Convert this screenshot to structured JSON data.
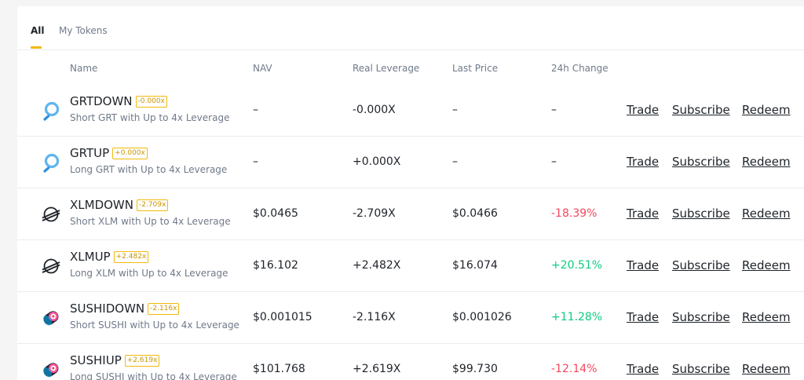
{
  "tabs": [
    {
      "label": "All",
      "active": true
    },
    {
      "label": "My Tokens",
      "active": false
    }
  ],
  "columns": {
    "name": "Name",
    "nav": "NAV",
    "leverage": "Real Leverage",
    "price": "Last Price",
    "change": "24h Change"
  },
  "actions": {
    "trade": "Trade",
    "subscribe": "Subscribe",
    "redeem": "Redeem"
  },
  "colors": {
    "accent": "#f0b90b",
    "up": "#0ecb81",
    "down": "#f6465d"
  },
  "rows": [
    {
      "symbol": "GRTDOWN",
      "badge": "-0.000x",
      "desc": "Short GRT with Up to 4x Leverage",
      "icon": "grt-icon",
      "nav": "–",
      "leverage": "-0.000X",
      "price": "–",
      "change": "–",
      "dir": "none"
    },
    {
      "symbol": "GRTUP",
      "badge": "+0.000x",
      "desc": "Long GRT with Up to 4x Leverage",
      "icon": "grt-icon",
      "nav": "–",
      "leverage": "+0.000X",
      "price": "–",
      "change": "–",
      "dir": "none"
    },
    {
      "symbol": "XLMDOWN",
      "badge": "-2.709x",
      "desc": "Short XLM with Up to 4x Leverage",
      "icon": "xlm-icon",
      "nav": "$0.0465",
      "leverage": "-2.709X",
      "price": "$0.0466",
      "change": "-18.39%",
      "dir": "down"
    },
    {
      "symbol": "XLMUP",
      "badge": "+2.482x",
      "desc": "Long XLM with Up to 4x Leverage",
      "icon": "xlm-icon",
      "nav": "$16.102",
      "leverage": "+2.482X",
      "price": "$16.074",
      "change": "+20.51%",
      "dir": "up"
    },
    {
      "symbol": "SUSHIDOWN",
      "badge": "-2.116x",
      "desc": "Short SUSHI with Up to 4x Leverage",
      "icon": "sushi-icon",
      "nav": "$0.001015",
      "leverage": "-2.116X",
      "price": "$0.001026",
      "change": "+11.28%",
      "dir": "up"
    },
    {
      "symbol": "SUSHIUP",
      "badge": "+2.619x",
      "desc": "Long SUSHI with Up to 4x Leverage",
      "icon": "sushi-icon",
      "nav": "$101.768",
      "leverage": "+2.619X",
      "price": "$99.730",
      "change": "-12.14%",
      "dir": "down"
    }
  ]
}
